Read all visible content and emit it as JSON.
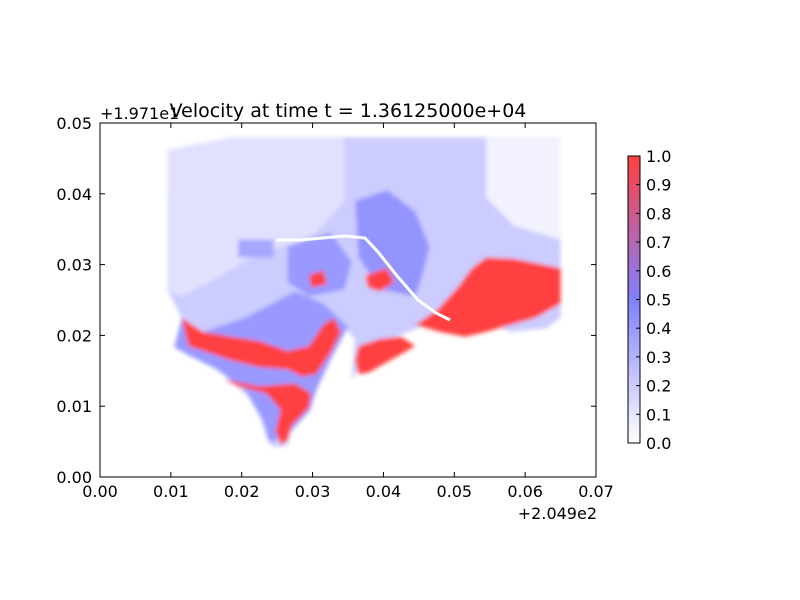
{
  "chart_data": {
    "type": "heatmap",
    "title": "Velocity at time t = 1.36125000e+04",
    "x_offset_label": "+2.049e2",
    "y_offset_label": "+1.971e1",
    "xlim": [
      0.0,
      0.07
    ],
    "ylim": [
      0.0,
      0.05
    ],
    "x_ticks": [
      {
        "value": 0.0,
        "label": "0.00"
      },
      {
        "value": 0.01,
        "label": "0.01"
      },
      {
        "value": 0.02,
        "label": "0.02"
      },
      {
        "value": 0.03,
        "label": "0.03"
      },
      {
        "value": 0.04,
        "label": "0.04"
      },
      {
        "value": 0.05,
        "label": "0.05"
      },
      {
        "value": 0.06,
        "label": "0.06"
      },
      {
        "value": 0.07,
        "label": "0.07"
      }
    ],
    "y_ticks": [
      {
        "value": 0.0,
        "label": "0.00"
      },
      {
        "value": 0.01,
        "label": "0.01"
      },
      {
        "value": 0.02,
        "label": "0.02"
      },
      {
        "value": 0.03,
        "label": "0.03"
      },
      {
        "value": 0.04,
        "label": "0.04"
      },
      {
        "value": 0.05,
        "label": "0.05"
      }
    ],
    "colorbar": {
      "range": [
        0.0,
        1.0
      ],
      "colors": [
        "#ffffff",
        "#8080ff",
        "#ff4040"
      ],
      "ticks": [
        {
          "value": 0.0,
          "label": "0.0"
        },
        {
          "value": 0.1,
          "label": "0.1"
        },
        {
          "value": 0.2,
          "label": "0.2"
        },
        {
          "value": 0.3,
          "label": "0.3"
        },
        {
          "value": 0.4,
          "label": "0.4"
        },
        {
          "value": 0.5,
          "label": "0.5"
        },
        {
          "value": 0.6,
          "label": "0.6"
        },
        {
          "value": 0.7,
          "label": "0.7"
        },
        {
          "value": 0.8,
          "label": "0.8"
        },
        {
          "value": 0.9,
          "label": "0.9"
        },
        {
          "value": 1.0,
          "label": "1.0"
        }
      ]
    },
    "regions": [
      {
        "value": 0.2,
        "points": [
          [
            0.0095,
            0.0462
          ],
          [
            0.0185,
            0.048
          ],
          [
            0.065,
            0.048
          ],
          [
            0.065,
            0.0225
          ],
          [
            0.063,
            0.021
          ],
          [
            0.058,
            0.0205
          ],
          [
            0.055,
            0.0215
          ],
          [
            0.0505,
            0.0225
          ],
          [
            0.046,
            0.0215
          ],
          [
            0.041,
            0.0195
          ],
          [
            0.038,
            0.0165
          ],
          [
            0.036,
            0.0145
          ],
          [
            0.0355,
            0.0135
          ],
          [
            0.036,
            0.0195
          ],
          [
            0.0345,
            0.021
          ],
          [
            0.0318,
            0.0175
          ],
          [
            0.0305,
            0.0125
          ],
          [
            0.0297,
            0.0095
          ],
          [
            0.027,
            0.0065
          ],
          [
            0.0265,
            0.0045
          ],
          [
            0.0245,
            0.0042
          ],
          [
            0.0235,
            0.0055
          ],
          [
            0.0225,
            0.0105
          ],
          [
            0.0195,
            0.0125
          ],
          [
            0.0165,
            0.0155
          ],
          [
            0.0125,
            0.0175
          ],
          [
            0.0105,
            0.0185
          ],
          [
            0.0115,
            0.0225
          ],
          [
            0.0095,
            0.0265
          ],
          [
            0.0095,
            0.0395
          ],
          [
            0.0105,
            0.0455
          ]
        ]
      },
      {
        "value": 0.12,
        "points": [
          [
            0.0095,
            0.0462
          ],
          [
            0.0185,
            0.048
          ],
          [
            0.0345,
            0.048
          ],
          [
            0.0345,
            0.039
          ],
          [
            0.0305,
            0.0345
          ],
          [
            0.0255,
            0.0325
          ],
          [
            0.0205,
            0.0305
          ],
          [
            0.0155,
            0.0275
          ],
          [
            0.0115,
            0.0255
          ],
          [
            0.0095,
            0.0265
          ],
          [
            0.0095,
            0.0395
          ]
        ]
      },
      {
        "value": 0.05,
        "points": [
          [
            0.0545,
            0.048
          ],
          [
            0.065,
            0.048
          ],
          [
            0.065,
            0.0335
          ],
          [
            0.0585,
            0.0355
          ],
          [
            0.0545,
            0.0395
          ]
        ]
      },
      {
        "value": 0.42,
        "points": [
          [
            0.036,
            0.039
          ],
          [
            0.0405,
            0.0405
          ],
          [
            0.0445,
            0.0375
          ],
          [
            0.0465,
            0.0325
          ],
          [
            0.0455,
            0.0285
          ],
          [
            0.0445,
            0.0255
          ],
          [
            0.0395,
            0.0265
          ],
          [
            0.0365,
            0.031
          ]
        ]
      },
      {
        "value": 0.4,
        "points": [
          [
            0.0115,
            0.0222
          ],
          [
            0.0145,
            0.0205
          ],
          [
            0.0205,
            0.0225
          ],
          [
            0.0275,
            0.0262
          ],
          [
            0.0315,
            0.0245
          ],
          [
            0.035,
            0.0212
          ],
          [
            0.0325,
            0.0165
          ],
          [
            0.0305,
            0.0122
          ],
          [
            0.0297,
            0.0095
          ],
          [
            0.027,
            0.0065
          ],
          [
            0.024,
            0.0048
          ],
          [
            0.0228,
            0.0082
          ],
          [
            0.0205,
            0.0122
          ],
          [
            0.0165,
            0.0152
          ],
          [
            0.0125,
            0.0172
          ],
          [
            0.0105,
            0.0183
          ]
        ]
      },
      {
        "value": 0.4,
        "points": [
          [
            0.0265,
            0.0325
          ],
          [
            0.0325,
            0.0345
          ],
          [
            0.0355,
            0.0305
          ],
          [
            0.0345,
            0.0265
          ],
          [
            0.0295,
            0.0255
          ],
          [
            0.0265,
            0.0275
          ]
        ]
      },
      {
        "value": 1.0,
        "points": [
          [
            0.0115,
            0.0225
          ],
          [
            0.0145,
            0.0205
          ],
          [
            0.0185,
            0.0198
          ],
          [
            0.0225,
            0.0192
          ],
          [
            0.0265,
            0.0178
          ],
          [
            0.0295,
            0.0185
          ],
          [
            0.0315,
            0.0215
          ],
          [
            0.033,
            0.0225
          ],
          [
            0.034,
            0.0205
          ],
          [
            0.0325,
            0.0175
          ],
          [
            0.0305,
            0.0145
          ],
          [
            0.0285,
            0.0142
          ],
          [
            0.0265,
            0.0152
          ],
          [
            0.0225,
            0.0155
          ],
          [
            0.0185,
            0.0165
          ],
          [
            0.0155,
            0.0175
          ],
          [
            0.0125,
            0.0185
          ]
        ]
      },
      {
        "value": 1.0,
        "points": [
          [
            0.0175,
            0.0138
          ],
          [
            0.0225,
            0.0128
          ],
          [
            0.0275,
            0.0132
          ],
          [
            0.0298,
            0.0118
          ],
          [
            0.0295,
            0.0098
          ],
          [
            0.027,
            0.0072
          ],
          [
            0.0265,
            0.0052
          ],
          [
            0.0255,
            0.0045
          ],
          [
            0.0248,
            0.0065
          ],
          [
            0.0255,
            0.0095
          ],
          [
            0.0235,
            0.0118
          ],
          [
            0.0195,
            0.0128
          ]
        ]
      },
      {
        "value": 1.0,
        "points": [
          [
            0.0365,
            0.0185
          ],
          [
            0.0395,
            0.0195
          ],
          [
            0.0425,
            0.0198
          ],
          [
            0.0445,
            0.0185
          ],
          [
            0.0415,
            0.0168
          ],
          [
            0.038,
            0.0148
          ],
          [
            0.0365,
            0.0145
          ],
          [
            0.036,
            0.0165
          ]
        ]
      },
      {
        "value": 1.0,
        "points": [
          [
            0.0445,
            0.0215
          ],
          [
            0.0475,
            0.0235
          ],
          [
            0.0505,
            0.0268
          ],
          [
            0.0525,
            0.0295
          ],
          [
            0.0545,
            0.031
          ],
          [
            0.0585,
            0.0308
          ],
          [
            0.065,
            0.0295
          ],
          [
            0.065,
            0.0245
          ],
          [
            0.0615,
            0.0225
          ],
          [
            0.058,
            0.0215
          ],
          [
            0.0545,
            0.0205
          ],
          [
            0.0515,
            0.0198
          ],
          [
            0.048,
            0.0205
          ]
        ]
      },
      {
        "value": 1.0,
        "points": [
          [
            0.0375,
            0.0285
          ],
          [
            0.0405,
            0.0295
          ],
          [
            0.0415,
            0.0275
          ],
          [
            0.0395,
            0.0262
          ],
          [
            0.0378,
            0.0268
          ]
        ]
      },
      {
        "value": 1.0,
        "points": [
          [
            0.0295,
            0.0285
          ],
          [
            0.0315,
            0.0292
          ],
          [
            0.032,
            0.0272
          ],
          [
            0.0298,
            0.0268
          ]
        ]
      },
      {
        "value": 0.35,
        "points": [
          [
            0.0195,
            0.0335
          ],
          [
            0.0245,
            0.0335
          ],
          [
            0.0245,
            0.031
          ],
          [
            0.0195,
            0.031
          ]
        ]
      }
    ],
    "series": [
      {
        "name": "",
        "values": []
      }
    ]
  }
}
